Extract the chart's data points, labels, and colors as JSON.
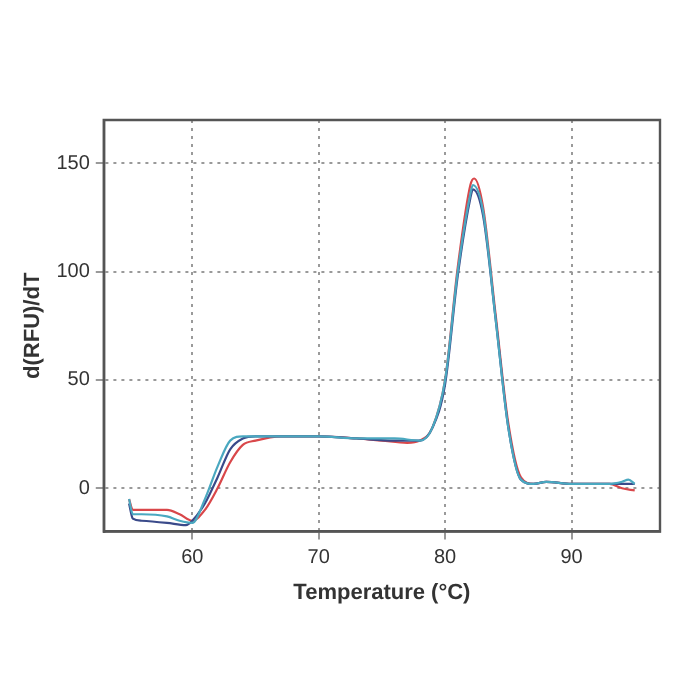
{
  "chart_data": {
    "type": "line",
    "xlabel": "Temperature (°C)",
    "ylabel": "d(RFU)/dT",
    "xlim": [
      53,
      97
    ],
    "xticks": [
      60,
      70,
      80,
      90
    ],
    "ylim": [
      -20,
      170
    ],
    "yticks": [
      0,
      50,
      100,
      150
    ],
    "grid": true,
    "legend": false,
    "marker": "none",
    "line_style": "solid",
    "series": [
      {
        "color": "#4aa8c0",
        "x": [
          55,
          55.3,
          56,
          58,
          59,
          60,
          61,
          62,
          63,
          64,
          65,
          67,
          70,
          73,
          76,
          78,
          79,
          80,
          81,
          82,
          82.2,
          83,
          84,
          85,
          86,
          87,
          88,
          90,
          93,
          94,
          94.5,
          95
        ],
        "values": [
          -5,
          -12,
          -12,
          -13,
          -15,
          -16,
          -5,
          10,
          22,
          24,
          24,
          24,
          24,
          23,
          23,
          22,
          28,
          50,
          100,
          136,
          140,
          128,
          78,
          28,
          4,
          2,
          3,
          2,
          2,
          3,
          4,
          2
        ]
      },
      {
        "color": "#3a4a8a",
        "x": [
          55,
          55.3,
          56,
          58,
          59.5,
          60,
          61,
          62,
          63,
          64,
          65,
          67,
          70,
          73,
          76,
          78,
          79,
          80,
          81,
          82,
          82.2,
          83,
          84,
          85,
          86,
          87,
          88,
          90,
          93,
          94,
          95
        ],
        "values": [
          -7,
          -14,
          -15,
          -16,
          -17,
          -15,
          -7,
          5,
          18,
          23,
          24,
          24,
          24,
          23,
          22,
          22,
          28,
          48,
          98,
          134,
          138,
          126,
          78,
          28,
          4,
          2,
          3,
          2,
          2,
          2,
          2
        ]
      },
      {
        "color": "#d9474a",
        "x": [
          55,
          55.3,
          56,
          58,
          59,
          60,
          61,
          62,
          63,
          64,
          65,
          67,
          70,
          73,
          75,
          77,
          78,
          79,
          80,
          81,
          82,
          82.3,
          83,
          84,
          85,
          86,
          87,
          88,
          90,
          93,
          94,
          95
        ],
        "values": [
          -5,
          -10,
          -10,
          -10,
          -12,
          -15,
          -10,
          0,
          12,
          20,
          22,
          24,
          24,
          23,
          22,
          21,
          22,
          28,
          50,
          102,
          140,
          143,
          130,
          80,
          30,
          5,
          2,
          3,
          2,
          2,
          0,
          -1
        ]
      }
    ]
  }
}
